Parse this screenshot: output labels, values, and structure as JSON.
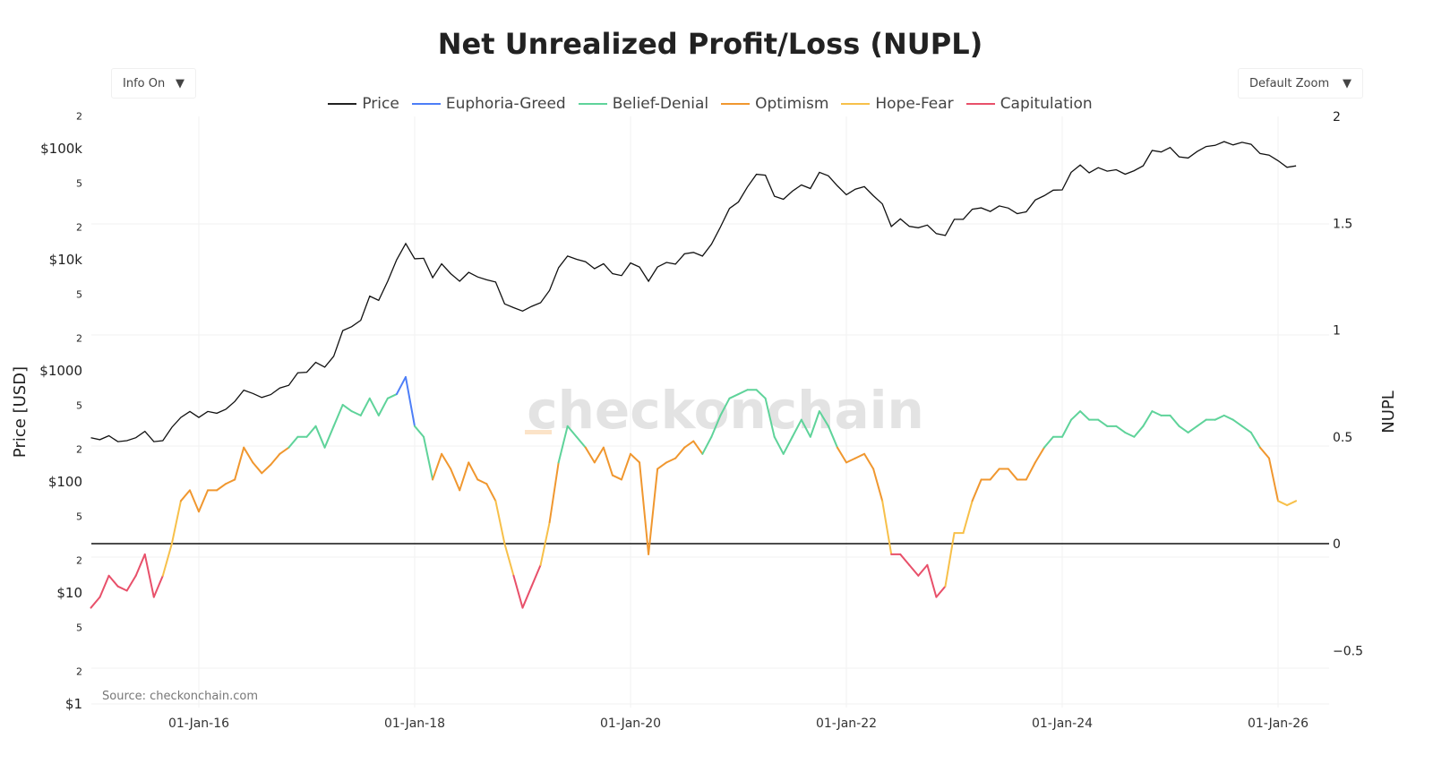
{
  "title": "Net Unrealized Profit/Loss (NUPL)",
  "controls": {
    "info": "Info On",
    "zoom": "Default Zoom",
    "caret": "▼"
  },
  "legend": [
    {
      "name": "Price",
      "color": "#222222"
    },
    {
      "name": "Euphoria-Greed",
      "color": "#4d7ef7"
    },
    {
      "name": "Belief-Denial",
      "color": "#5fd39a"
    },
    {
      "name": "Optimism",
      "color": "#f0972f"
    },
    {
      "name": "Hope-Fear",
      "color": "#f7c04a"
    },
    {
      "name": "Capitulation",
      "color": "#e8506a"
    }
  ],
  "watermark": "checkonchain",
  "source": "Source: checkonchain.com",
  "chart_data": {
    "type": "line",
    "title": "Net Unrealized Profit/Loss (NUPL)",
    "ylabel": "Price [USD]",
    "y2label": "NUPL",
    "yscale": "log",
    "ylim": [
      0.8,
      250000
    ],
    "y2lim": [
      -0.77,
      2
    ],
    "xticks": [
      "01-Jan-16",
      "01-Jan-18",
      "01-Jan-20",
      "01-Jan-22",
      "01-Jan-24",
      "01-Jan-26"
    ],
    "yticks": [
      {
        "v": 1,
        "l": "$1"
      },
      {
        "v": 2,
        "l": "2"
      },
      {
        "v": 5,
        "l": "5"
      },
      {
        "v": 10,
        "l": "$10"
      },
      {
        "v": 20,
        "l": "2"
      },
      {
        "v": 50,
        "l": "5"
      },
      {
        "v": 100,
        "l": "$100"
      },
      {
        "v": 200,
        "l": "2"
      },
      {
        "v": 500,
        "l": "5"
      },
      {
        "v": 1000,
        "l": "$1000"
      },
      {
        "v": 2000,
        "l": "2"
      },
      {
        "v": 5000,
        "l": "5"
      },
      {
        "v": 10000,
        "l": "$10k"
      },
      {
        "v": 20000,
        "l": "2"
      },
      {
        "v": 50000,
        "l": "5"
      },
      {
        "v": 100000,
        "l": "$100k"
      },
      {
        "v": 200000,
        "l": "2"
      }
    ],
    "y2ticks": [
      {
        "v": -0.5,
        "l": "−0.5"
      },
      {
        "v": 0,
        "l": "0"
      },
      {
        "v": 0.5,
        "l": "0.5"
      },
      {
        "v": 1,
        "l": "1"
      },
      {
        "v": 1.5,
        "l": "1.5"
      },
      {
        "v": 2,
        "l": "2"
      }
    ],
    "zones": [
      {
        "name": "Capitulation",
        "max": 0
      },
      {
        "name": "Hope-Fear",
        "max": 0.25
      },
      {
        "name": "Optimism",
        "max": 0.5
      },
      {
        "name": "Belief-Denial",
        "max": 0.75
      },
      {
        "name": "Euphoria-Greed",
        "max": 99
      }
    ],
    "start": "2015-01",
    "interval": "monthly",
    "price": [
      250,
      240,
      260,
      230,
      235,
      250,
      285,
      230,
      235,
      310,
      380,
      430,
      380,
      430,
      415,
      450,
      530,
      670,
      625,
      575,
      610,
      700,
      740,
      960,
      970,
      1190,
      1080,
      1350,
      2300,
      2500,
      2850,
      4700,
      4300,
      6400,
      10000,
      14000,
      10200,
      10300,
      6900,
      9200,
      7500,
      6400,
      7700,
      7000,
      6600,
      6300,
      4000,
      3700,
      3450,
      3800,
      4100,
      5300,
      8500,
      10800,
      10100,
      9600,
      8300,
      9200,
      7500,
      7200,
      9350,
      8600,
      6400,
      8600,
      9450,
      9130,
      11300,
      11650,
      10800,
      13800,
      19700,
      29000,
      33100,
      45200,
      58800,
      57700,
      37300,
      35000,
      41500,
      47100,
      43800,
      61300,
      57000,
      46300,
      38500,
      43200,
      45500,
      37700,
      31800,
      19900,
      23300,
      20000,
      19400,
      20500,
      17200,
      16550,
      23100,
      23150,
      28500,
      29300,
      27200,
      30500,
      29200,
      26000,
      27000,
      34500,
      37700,
      42300,
      42600,
      61200,
      71300,
      60600,
      67500,
      62700,
      64600,
      58900,
      63300,
      70200,
      96400,
      93400,
      102400,
      84400,
      82500,
      94200,
      104600,
      107100,
      115700,
      108200,
      114000,
      109500,
      90500,
      87500,
      78000,
      68000,
      70000
    ],
    "nupl": [
      -0.3,
      -0.25,
      -0.15,
      -0.2,
      -0.22,
      -0.15,
      -0.05,
      -0.25,
      -0.15,
      0.0,
      0.2,
      0.25,
      0.15,
      0.25,
      0.25,
      0.28,
      0.3,
      0.45,
      0.38,
      0.33,
      0.37,
      0.42,
      0.45,
      0.5,
      0.5,
      0.55,
      0.45,
      0.55,
      0.65,
      0.62,
      0.6,
      0.68,
      0.6,
      0.68,
      0.7,
      0.78,
      0.55,
      0.5,
      0.3,
      0.42,
      0.35,
      0.25,
      0.38,
      0.3,
      0.28,
      0.2,
      0.0,
      -0.15,
      -0.3,
      -0.2,
      -0.1,
      0.1,
      0.38,
      0.55,
      0.5,
      0.45,
      0.38,
      0.45,
      0.32,
      0.3,
      0.42,
      0.38,
      -0.05,
      0.35,
      0.38,
      0.4,
      0.45,
      0.48,
      0.42,
      0.5,
      0.6,
      0.68,
      0.7,
      0.72,
      0.72,
      0.68,
      0.5,
      0.42,
      0.5,
      0.58,
      0.5,
      0.62,
      0.55,
      0.45,
      0.38,
      0.4,
      0.42,
      0.35,
      0.2,
      -0.05,
      -0.05,
      -0.1,
      -0.15,
      -0.1,
      -0.25,
      -0.2,
      0.05,
      0.05,
      0.2,
      0.3,
      0.3,
      0.35,
      0.35,
      0.3,
      0.3,
      0.38,
      0.45,
      0.5,
      0.5,
      0.58,
      0.62,
      0.58,
      0.58,
      0.55,
      0.55,
      0.52,
      0.5,
      0.55,
      0.62,
      0.6,
      0.6,
      0.55,
      0.52,
      0.55,
      0.58,
      0.58,
      0.6,
      0.58,
      0.55,
      0.52,
      0.45,
      0.4,
      0.2,
      0.18,
      0.2
    ]
  }
}
